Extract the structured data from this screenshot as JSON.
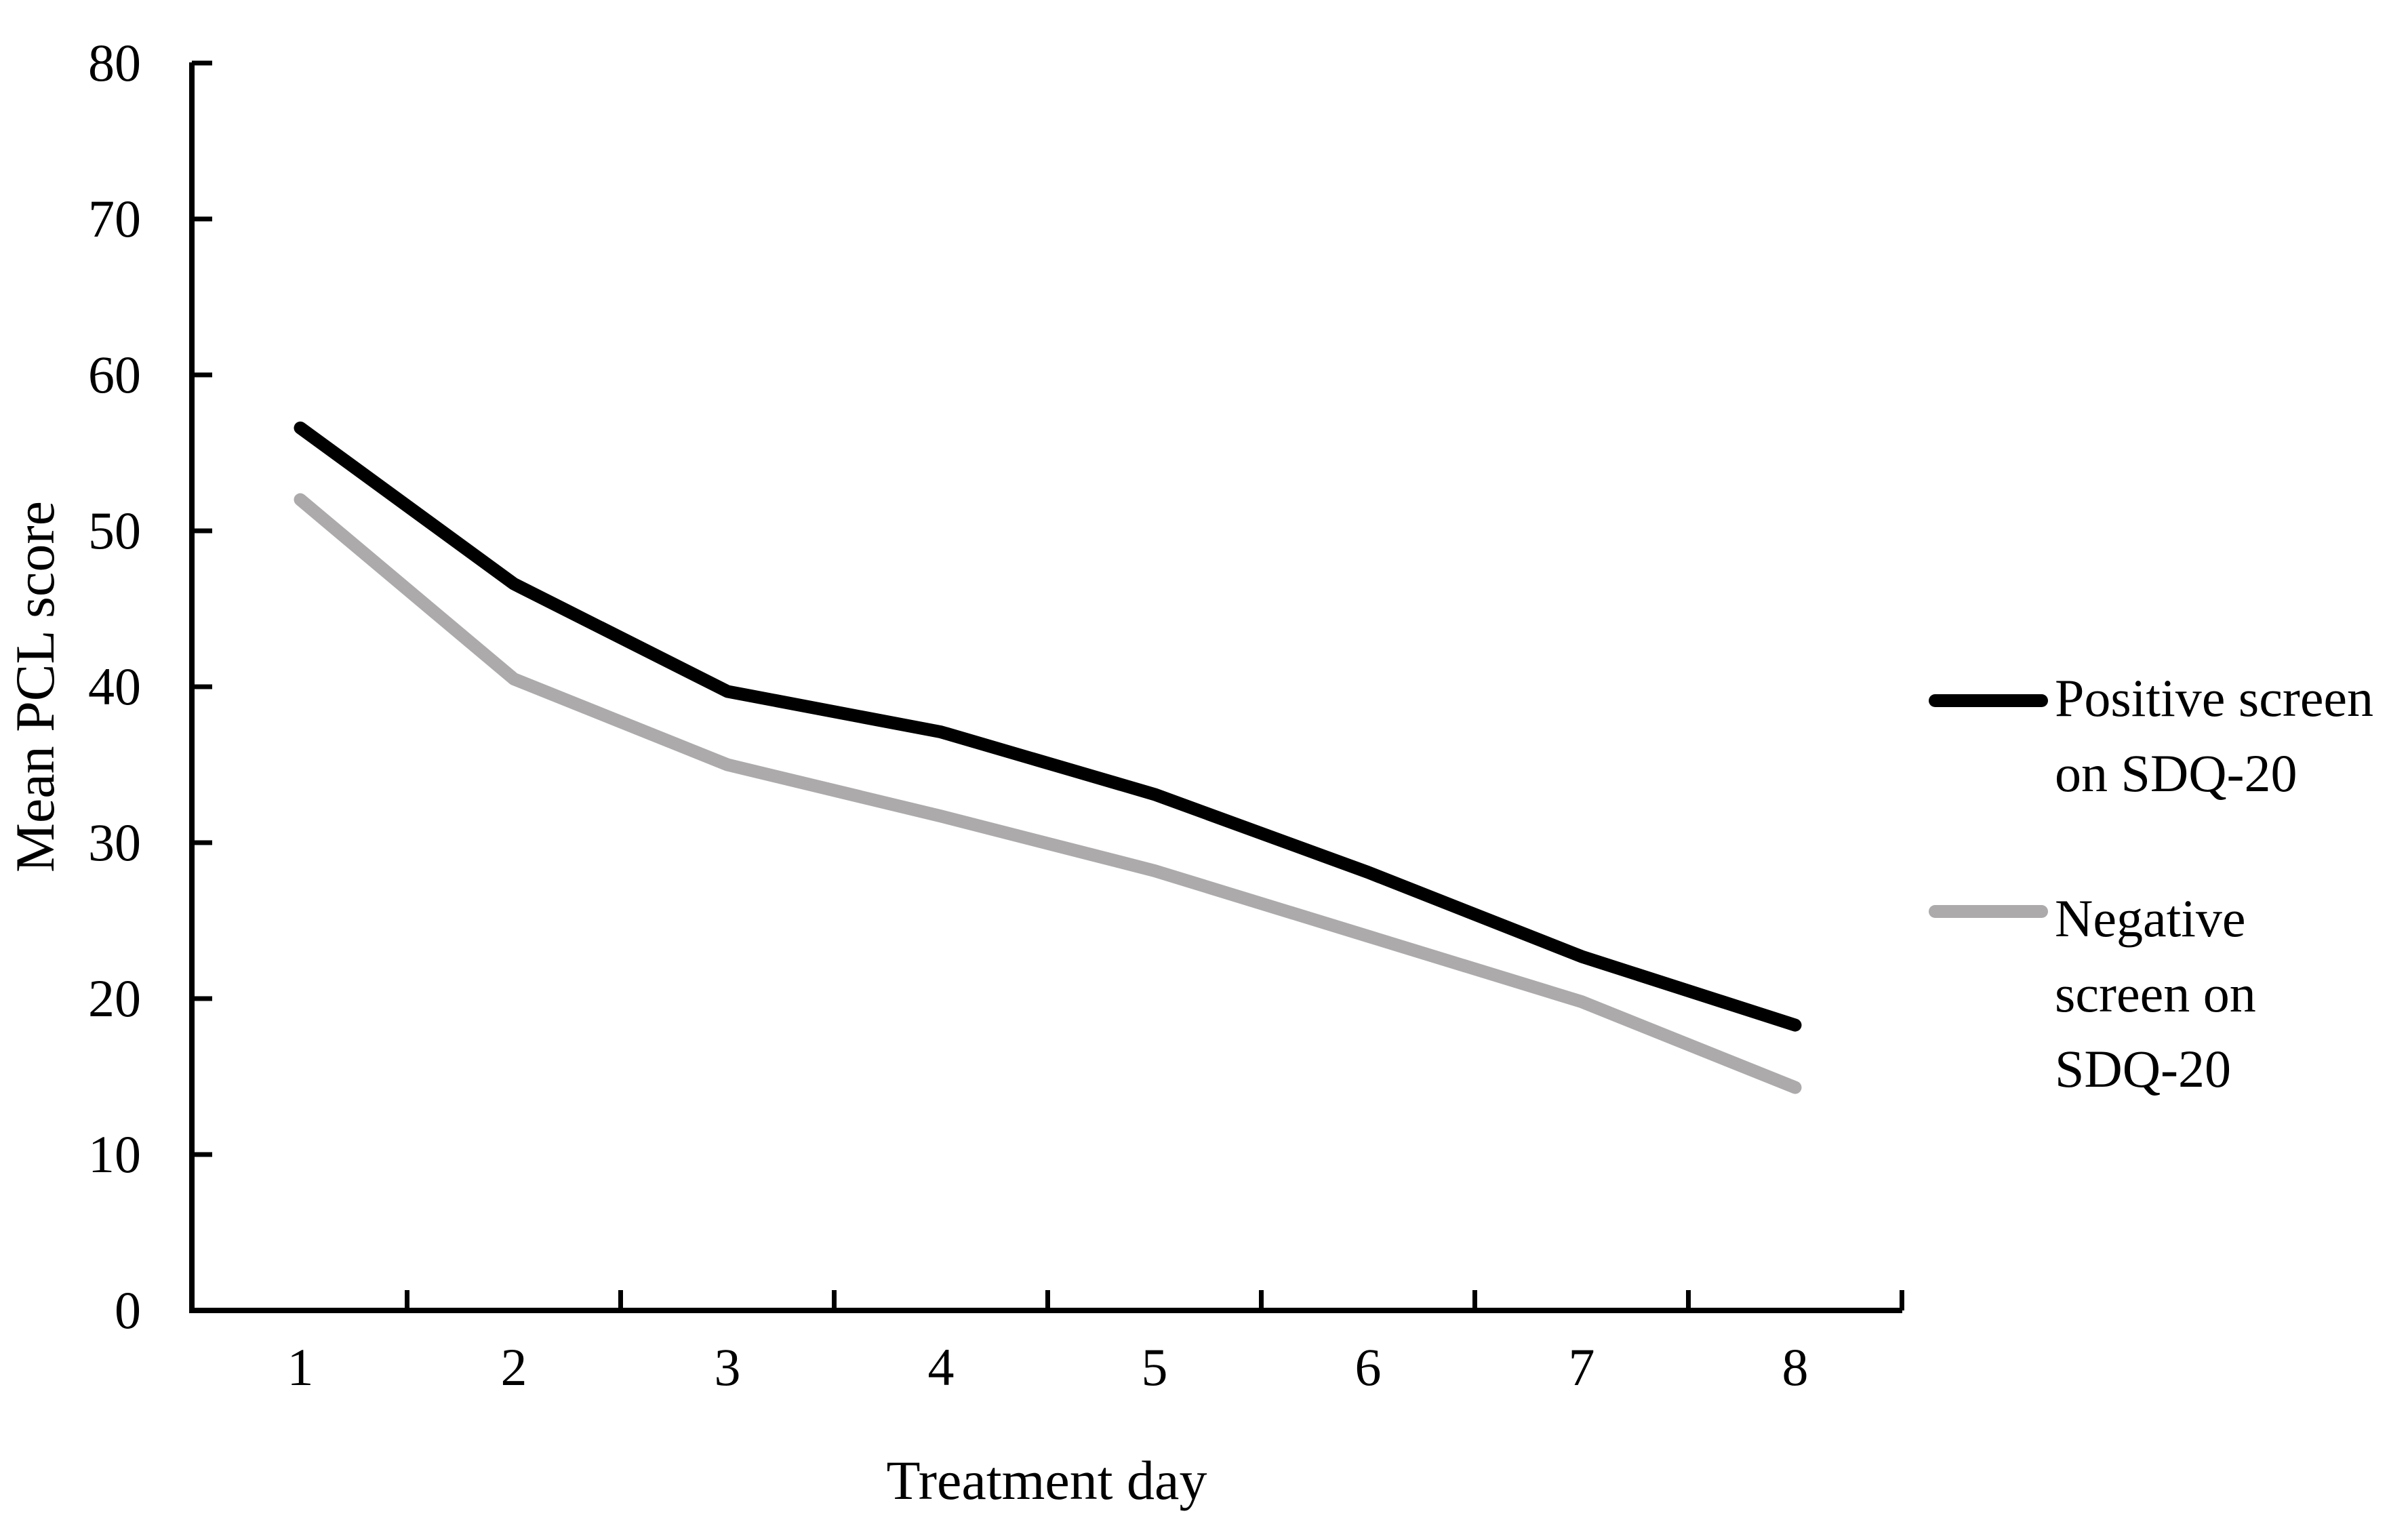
{
  "chart_data": {
    "type": "line",
    "title": "",
    "xlabel": "Treatment day",
    "ylabel": "Mean PCL score",
    "categories": [
      "1",
      "2",
      "3",
      "4",
      "5",
      "6",
      "7",
      "8"
    ],
    "yticks": [
      "0",
      "10",
      "20",
      "30",
      "40",
      "50",
      "60",
      "70",
      "80"
    ],
    "ylim": [
      0,
      80
    ],
    "grid": false,
    "legend_position": "right",
    "axis_color": "#000000",
    "background_color": "#ffffff",
    "series": [
      {
        "name": "Positive screen on SDQ-20",
        "color": "#000000",
        "label_lines": [
          "Positive screen",
          "on SDQ-20"
        ],
        "x": [
          1,
          2,
          3,
          4,
          5,
          6,
          7,
          8
        ],
        "values": [
          56.6,
          46.6,
          39.7,
          37.1,
          33.1,
          28.1,
          22.7,
          18.3
        ]
      },
      {
        "name": "Negative screen on SDQ-20",
        "color": "#ACAAAA",
        "label_lines": [
          "Negative",
          "screen on",
          "SDQ-20"
        ],
        "x": [
          1,
          2,
          3,
          4,
          5,
          6,
          7,
          8
        ],
        "values": [
          52.0,
          40.5,
          35.0,
          31.7,
          28.2,
          24.0,
          19.8,
          14.3
        ]
      }
    ]
  }
}
